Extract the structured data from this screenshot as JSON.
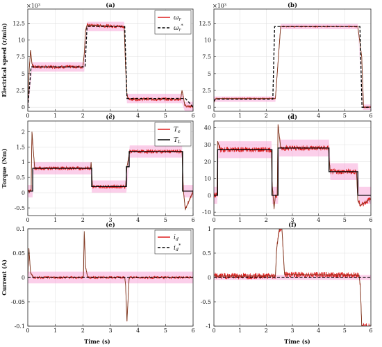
{
  "colors": {
    "measured": "#dd1e1e",
    "reference": "#000000",
    "band": "#f7a8d8",
    "torque_mean": "#7a3a20"
  },
  "figure": {
    "xlabel": "Time (s)",
    "xticks": [
      0,
      1,
      2,
      3,
      4,
      5,
      6
    ]
  },
  "chart_data": [
    {
      "id": "a",
      "panel_title": "(a)",
      "type": "line",
      "ylabel": "Electrical speed (r/min)",
      "exponent": "×10³",
      "ylim": [
        -0.6,
        14.6
      ],
      "yticks": [
        0,
        2.5,
        5,
        7.5,
        10,
        12.5
      ],
      "ytick_labels": [
        "0",
        "2.5",
        "5",
        "7.5",
        "10",
        "12.5"
      ],
      "legend": {
        "position": "top-right",
        "measured": "ω",
        "measured_sub": "r",
        "reference": "ω",
        "reference_sub": "r",
        "reference_sup": "*"
      },
      "series": [
        {
          "role": "measured",
          "noise": 0.25,
          "x": [
            0,
            0.05,
            0.1,
            0.15,
            0.2,
            2.0,
            2.05,
            2.1,
            2.15,
            3.5,
            3.55,
            3.6,
            3.65,
            5.55,
            5.6,
            5.7,
            5.8,
            6.0
          ],
          "y": [
            0,
            5.5,
            8.5,
            6.5,
            6.0,
            6.0,
            8.0,
            11.5,
            12.2,
            12.0,
            6.0,
            1.8,
            1.2,
            1.2,
            2.5,
            0.3,
            0.1,
            0.1
          ]
        },
        {
          "role": "reference",
          "noise": 0,
          "x": [
            0,
            0.12,
            2.08,
            2.15,
            3.52,
            3.6,
            5.72,
            6.0
          ],
          "y": [
            0,
            6.0,
            6.0,
            12.0,
            12.0,
            1.3,
            1.3,
            0.05
          ]
        }
      ],
      "band": {
        "x": [
          0,
          0.15,
          2.05,
          2.15,
          3.5,
          3.6,
          5.6,
          5.7,
          6.0
        ],
        "y": [
          0,
          6,
          6,
          12,
          12,
          1.3,
          1.3,
          0.1,
          0.1
        ],
        "width": 0.7
      }
    },
    {
      "id": "b",
      "panel_title": "(b)",
      "type": "line",
      "ylabel": "",
      "exponent": "×10³",
      "ylim": [
        -0.6,
        14.6
      ],
      "yticks": [
        0,
        2.5,
        5,
        7.5,
        10,
        12.5
      ],
      "ytick_labels": [
        "0",
        "2.5",
        "5",
        "7.5",
        "10",
        "12.5"
      ],
      "series": [
        {
          "role": "measured",
          "noise": 0.08,
          "x": [
            0,
            0.05,
            0.1,
            2.35,
            2.55,
            5.5,
            5.65,
            5.72,
            6.0
          ],
          "y": [
            0.7,
            1.2,
            1.3,
            1.3,
            12.0,
            12.0,
            7.5,
            0,
            0
          ]
        },
        {
          "role": "reference",
          "noise": 0,
          "x": [
            0,
            0.05,
            2.25,
            2.32,
            5.58,
            5.66,
            6.0
          ],
          "y": [
            0.9,
            1.2,
            1.2,
            12.0,
            12.0,
            0,
            0
          ]
        }
      ],
      "band": {
        "x": [
          0,
          2.35,
          2.55,
          5.5,
          5.7,
          6.0
        ],
        "y": [
          1.2,
          1.2,
          12,
          12,
          0,
          0
        ],
        "width": 0.4
      }
    },
    {
      "id": "c",
      "panel_title": "(c)",
      "type": "line",
      "ylabel": "Torque (Nm)",
      "exponent": "",
      "ylim": [
        -0.75,
        2.35
      ],
      "yticks": [
        -0.5,
        0,
        0.5,
        1,
        1.5,
        2
      ],
      "ytick_labels": [
        "-0.5",
        "0",
        "0.5",
        "1",
        "1.5",
        "2"
      ],
      "legend": {
        "position": "top-right",
        "measured": "T",
        "measured_sub": "e",
        "reference": "T",
        "reference_sub": "L",
        "reference_sup": ""
      },
      "series": [
        {
          "role": "measured",
          "noise": 0.06,
          "x": [
            0,
            0.12,
            0.15,
            0.25,
            2.28,
            2.3,
            2.35,
            3.55,
            3.6,
            3.7,
            5.6,
            5.65,
            5.72,
            6.0
          ],
          "y": [
            0.05,
            0.05,
            2.0,
            0.8,
            0.8,
            1.0,
            0.2,
            0.2,
            0.85,
            1.35,
            1.35,
            0.05,
            -0.55,
            0.05
          ]
        },
        {
          "role": "reference",
          "noise": 0,
          "x": [
            0,
            0.18,
            0.18,
            2.32,
            2.32,
            3.58,
            3.58,
            3.68,
            3.68,
            5.62,
            5.62,
            6.0
          ],
          "y": [
            0.05,
            0.05,
            0.8,
            0.8,
            0.2,
            0.2,
            0.85,
            0.85,
            1.35,
            1.35,
            0.05,
            0.05
          ]
        }
      ],
      "band": {
        "x": [
          0,
          0.18,
          0.2,
          2.3,
          2.32,
          3.58,
          3.7,
          5.6,
          5.65,
          6.0
        ],
        "y": [
          0.05,
          0.05,
          0.8,
          0.8,
          0.2,
          0.2,
          1.35,
          1.35,
          0.05,
          0.05
        ],
        "width": 0.2
      }
    },
    {
      "id": "d",
      "panel_title": "(d)",
      "type": "line",
      "ylabel": "",
      "exponent": "",
      "ylim": [
        -12,
        44
      ],
      "yticks": [
        -10,
        0,
        10,
        20,
        30,
        40
      ],
      "ytick_labels": [
        "-10",
        "0",
        "10",
        "20",
        "30",
        "40"
      ],
      "series": [
        {
          "role": "measured",
          "noise": 1.6,
          "x": [
            0,
            0.12,
            0.14,
            0.25,
            2.2,
            2.22,
            2.3,
            2.35,
            2.42,
            2.45,
            2.55,
            4.38,
            4.4,
            4.45,
            5.45,
            5.5,
            5.6,
            6.0
          ],
          "y": [
            0,
            0,
            32,
            27,
            27,
            8,
            -8,
            0,
            0,
            42,
            28,
            28,
            22,
            14,
            14,
            -3,
            -6,
            -2
          ]
        },
        {
          "role": "reference",
          "noise": 0,
          "x": [
            0,
            0.14,
            0.14,
            2.22,
            2.22,
            2.45,
            2.45,
            4.4,
            4.4,
            5.5,
            5.5,
            6.0
          ],
          "y": [
            0,
            0,
            27,
            27,
            0,
            0,
            28,
            28,
            14,
            14,
            0,
            0
          ]
        }
      ],
      "band": {
        "x": [
          0,
          0.14,
          0.16,
          2.2,
          2.22,
          2.45,
          2.5,
          4.4,
          4.45,
          5.5,
          5.55,
          6.0
        ],
        "y": [
          0,
          0,
          27,
          27,
          0,
          0,
          28,
          28,
          14,
          14,
          0,
          0
        ],
        "width": 5
      }
    },
    {
      "id": "e",
      "panel_title": "(e)",
      "type": "line",
      "ylabel": "Current (A)",
      "exponent": "",
      "ylim": [
        -0.1,
        0.1
      ],
      "yticks": [
        -0.1,
        -0.05,
        0,
        0.05,
        0.1
      ],
      "ytick_labels": [
        "-0.1",
        "-0.05",
        "0",
        "0.05",
        "0.1"
      ],
      "legend": {
        "position": "top-right",
        "measured": "i",
        "measured_sub": "d",
        "reference": "i",
        "reference_sub": "d",
        "reference_sup": "*"
      },
      "series": [
        {
          "role": "measured",
          "noise": 0.0025,
          "x": [
            0,
            0.04,
            0.1,
            0.2,
            2.02,
            2.05,
            2.1,
            2.18,
            3.52,
            3.55,
            3.6,
            3.68,
            6.0
          ],
          "y": [
            0,
            0.06,
            0.01,
            0,
            0,
            0.095,
            0.02,
            0,
            0,
            -0.015,
            -0.09,
            0,
            0
          ]
        },
        {
          "role": "reference",
          "noise": 0,
          "x": [
            0,
            6.0
          ],
          "y": [
            0,
            0
          ]
        }
      ],
      "band": {
        "x": [
          0,
          6.0
        ],
        "y": [
          0,
          0
        ],
        "width": 0.012
      }
    },
    {
      "id": "f",
      "panel_title": "(f)",
      "type": "line",
      "ylabel": "",
      "exponent": "",
      "ylim": [
        -1,
        1
      ],
      "yticks": [
        -1,
        -0.5,
        0,
        0.5,
        1
      ],
      "ytick_labels": [
        "-1",
        "-0.5",
        "0",
        "0.5",
        "1"
      ],
      "series": [
        {
          "role": "measured",
          "noise": 0.06,
          "x": [
            0,
            2.35,
            2.4,
            2.5,
            2.6,
            2.7,
            5.55,
            5.6,
            5.65,
            5.72,
            6.0
          ],
          "y": [
            0.03,
            0.03,
            0.6,
            1.0,
            1.0,
            0.06,
            0.05,
            -0.2,
            -1.0,
            -1.0,
            -1.0
          ]
        },
        {
          "role": "reference",
          "noise": 0,
          "x": [
            0,
            6.0
          ],
          "y": [
            0,
            0
          ]
        }
      ],
      "band": {
        "x": [
          0,
          6.0
        ],
        "y": [
          0,
          0
        ],
        "width": 0.05
      }
    }
  ]
}
